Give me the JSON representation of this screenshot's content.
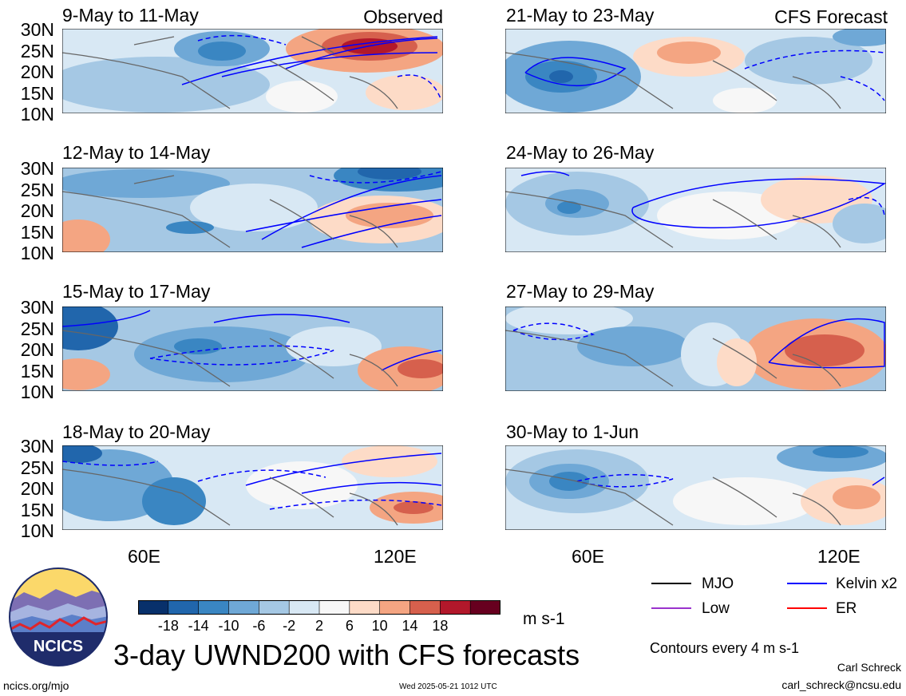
{
  "figure": {
    "title": "3-day UWND200 with CFS forecasts",
    "units": "m s-1",
    "contour_note": "Contours every 4 m s-1",
    "author": "Carl Schreck",
    "email": "carl_schreck@ncsu.edu",
    "site": "ncics.org/mjo",
    "timestamp": "Wed 2025-05-21 1012 UTC",
    "logo_text": "NCICS"
  },
  "columns": {
    "left_tag": "Observed",
    "right_tag": "CFS Forecast"
  },
  "panels": [
    {
      "title": "9-May to 11-May",
      "column": "observed"
    },
    {
      "title": "12-May to 14-May",
      "column": "observed"
    },
    {
      "title": "15-May to 17-May",
      "column": "observed"
    },
    {
      "title": "18-May to 20-May",
      "column": "observed"
    },
    {
      "title": "21-May to 23-May",
      "column": "forecast"
    },
    {
      "title": "24-May to 26-May",
      "column": "forecast"
    },
    {
      "title": "27-May to 29-May",
      "column": "forecast"
    },
    {
      "title": "30-May to 1-Jun",
      "column": "forecast"
    }
  ],
  "lat_labels": [
    "30N",
    "25N",
    "20N",
    "15N",
    "10N"
  ],
  "lon_labels": [
    "60E",
    "120E"
  ],
  "colorbar": {
    "labels": [
      "-18",
      "-14",
      "-10",
      "-6",
      "-2",
      "2",
      "6",
      "10",
      "14",
      "18"
    ],
    "colors": [
      "#08306b",
      "#2166ac",
      "#3a86c2",
      "#6fa8d6",
      "#a5c8e4",
      "#d8e8f4",
      "#f7f7f7",
      "#fddbc7",
      "#f4a582",
      "#d6604d",
      "#b2182b",
      "#67001f"
    ]
  },
  "legend": [
    {
      "label": "MJO",
      "color": "#000000"
    },
    {
      "label": "Kelvin x2",
      "color": "#0000ff"
    },
    {
      "label": "Low",
      "color": "#9a32cd"
    },
    {
      "label": "ER",
      "color": "#ff0000"
    }
  ]
}
